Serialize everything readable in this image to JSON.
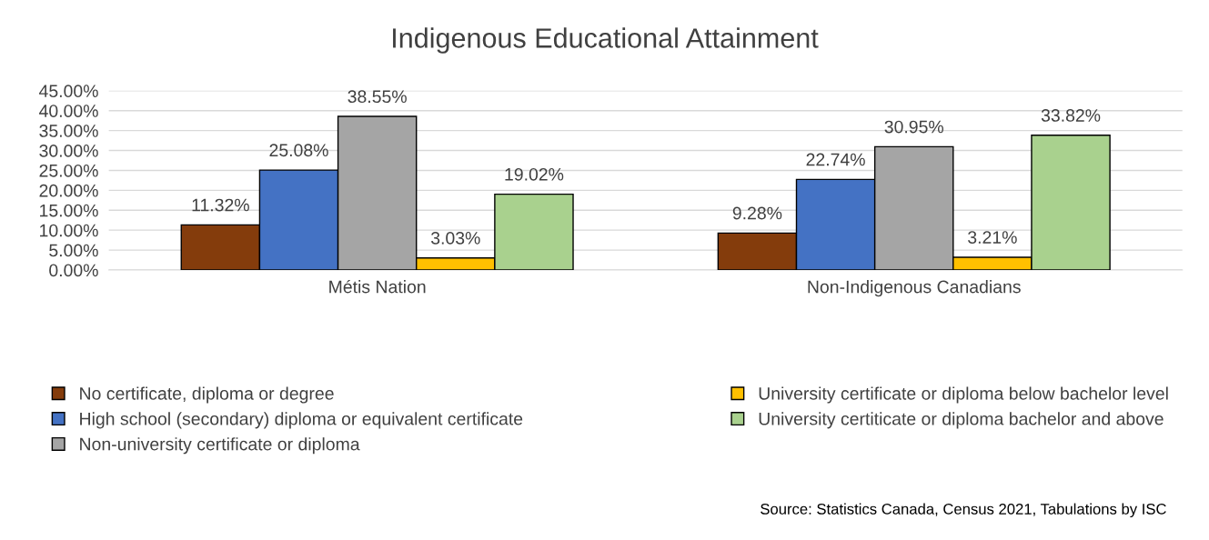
{
  "chart_data": {
    "type": "bar",
    "title": "Indigenous Educational Attainment",
    "categories": [
      "Métis Nation",
      "Non-Indigenous Canadians"
    ],
    "series": [
      {
        "name": "No certificate, diploma or degree",
        "color": "#843c0c",
        "values": [
          11.32,
          9.28
        ],
        "value_labels": [
          "11.32%",
          "9.28%"
        ]
      },
      {
        "name": "High school (secondary) diploma or equivalent certificate",
        "color": "#4472c4",
        "values": [
          25.08,
          22.74
        ],
        "value_labels": [
          "25.08%",
          "22.74%"
        ]
      },
      {
        "name": "Non-university certificate or diploma",
        "color": "#a5a5a5",
        "values": [
          38.55,
          30.95
        ],
        "value_labels": [
          "38.55%",
          "30.95%"
        ]
      },
      {
        "name": "University certificate or diploma below bachelor level",
        "color": "#ffc000",
        "values": [
          3.03,
          3.21
        ],
        "value_labels": [
          "3.03%",
          "3.21%"
        ]
      },
      {
        "name": "University certiticate or diploma bachelor and above",
        "color": "#a9d18e",
        "values": [
          19.02,
          33.82
        ],
        "value_labels": [
          "19.02%",
          "33.82%"
        ]
      }
    ],
    "ylim": [
      0,
      45
    ],
    "yticks": [
      {
        "value": 0,
        "label": "0.00%"
      },
      {
        "value": 5,
        "label": "5.00%"
      },
      {
        "value": 10,
        "label": "10.00%"
      },
      {
        "value": 15,
        "label": "15.00%"
      },
      {
        "value": 20,
        "label": "20.00%"
      },
      {
        "value": 25,
        "label": "25.00%"
      },
      {
        "value": 30,
        "label": "30.00%"
      },
      {
        "value": 35,
        "label": "35.00%"
      },
      {
        "value": 40,
        "label": "40.00%"
      },
      {
        "value": 45,
        "label": "45.00%"
      }
    ],
    "grid": "y",
    "legend": "bottom",
    "annotations": [
      "Source: Statistics Canada, Census 2021, Tabulations by ISC"
    ]
  }
}
